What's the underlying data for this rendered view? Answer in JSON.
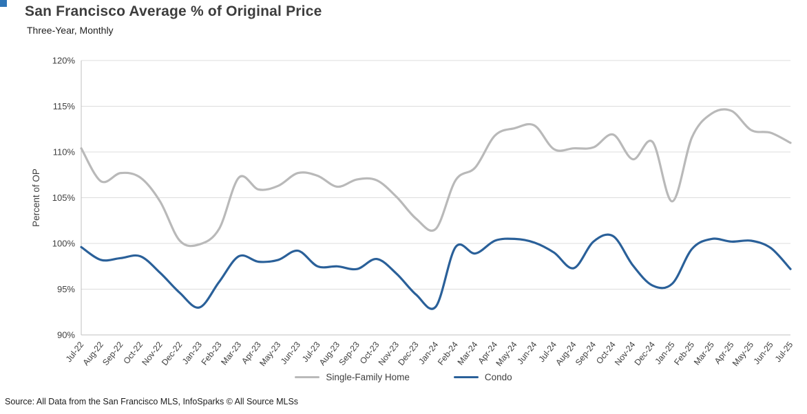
{
  "footer": {
    "source": "Source: All Data from the San Francisco MLS, InfoSparks © All Source MLSs"
  },
  "chart_data": {
    "type": "line",
    "title": "San Francisco Average % of Original Price",
    "subtitle": "Three-Year, Monthly",
    "xlabel": "",
    "ylabel": "Percent of OP",
    "ylim": [
      90,
      120
    ],
    "ytick_step": 5,
    "ytick_format": "percent",
    "grid": true,
    "legend_position": "bottom",
    "categories": [
      "Jul-22",
      "Aug-22",
      "Sep-22",
      "Oct-22",
      "Nov-22",
      "Dec-22",
      "Jan-23",
      "Feb-23",
      "Mar-23",
      "Apr-23",
      "May-23",
      "Jun-23",
      "Jul-23",
      "Aug-23",
      "Sep-23",
      "Oct-23",
      "Nov-23",
      "Dec-23",
      "Jan-24",
      "Feb-24",
      "Mar-24",
      "Apr-24",
      "May-24",
      "Jun-24",
      "Jul-24",
      "Aug-24",
      "Sep-24",
      "Oct-24",
      "Nov-24",
      "Dec-24",
      "Jan-25",
      "Feb-25",
      "Mar-25",
      "Apr-25",
      "May-25",
      "Jun-25",
      "Jul-25"
    ],
    "series": [
      {
        "name": "Single-Family Home",
        "color": "#b9b9b9",
        "values": [
          110.4,
          106.8,
          107.7,
          107.2,
          104.6,
          100.3,
          99.9,
          101.6,
          107.2,
          105.9,
          106.3,
          107.7,
          107.4,
          106.2,
          107.0,
          106.9,
          105.1,
          102.7,
          101.6,
          106.9,
          108.3,
          111.8,
          112.6,
          112.9,
          110.3,
          110.4,
          110.5,
          111.9,
          109.2,
          111.1,
          104.6,
          111.6,
          114.2,
          114.5,
          112.4,
          112.1,
          111.0
        ]
      },
      {
        "name": "Condo",
        "color": "#2a6099",
        "values": [
          99.6,
          98.2,
          98.4,
          98.6,
          96.8,
          94.6,
          93.0,
          95.8,
          98.6,
          98.0,
          98.2,
          99.2,
          97.5,
          97.5,
          97.2,
          98.3,
          96.7,
          94.4,
          93.1,
          99.6,
          98.9,
          100.3,
          100.5,
          100.1,
          99.0,
          97.3,
          100.2,
          100.8,
          97.6,
          95.4,
          95.6,
          99.4,
          100.5,
          100.2,
          100.3,
          99.5,
          97.2
        ]
      }
    ],
    "colors": {
      "gridline": "#dcdcdc",
      "axis": "#bfbfbf",
      "tick_text": "#404040",
      "title_text": "#3d3d3d"
    }
  }
}
